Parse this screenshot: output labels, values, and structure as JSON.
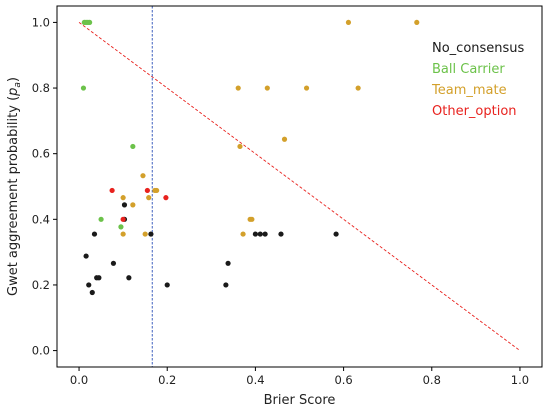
{
  "chart_data": {
    "type": "scatter",
    "xlabel": "Brier Score",
    "ylabel": "Gwet aggreement probability (",
    "ylabel_symbol": "p",
    "ylabel_subscript": "a",
    "ylabel_close": ")",
    "xlim": [
      -0.05,
      1.05
    ],
    "ylim": [
      -0.05,
      1.05
    ],
    "xticks": [
      0.0,
      0.2,
      0.4,
      0.6,
      0.8,
      1.0
    ],
    "xtick_labels": [
      "0.0",
      "0.2",
      "0.4",
      "0.6",
      "0.8",
      "1.0"
    ],
    "yticks": [
      0.0,
      0.2,
      0.4,
      0.6,
      0.8,
      1.0
    ],
    "ytick_labels": [
      "0.0",
      "0.2",
      "0.4",
      "0.6",
      "0.8",
      "1.0"
    ],
    "grid": false,
    "legend": "top-right",
    "reference_lines": [
      {
        "kind": "diagonal",
        "from": [
          0,
          1
        ],
        "to": [
          1,
          0
        ],
        "color": "#e8221e",
        "style": "dashed"
      },
      {
        "kind": "vertical",
        "x": 0.166,
        "color": "#2b50b8",
        "style": "dashed"
      }
    ],
    "series": [
      {
        "name": "No_consensus",
        "color": "#1a1a1a",
        "points": [
          [
            0.016,
            0.288
          ],
          [
            0.022,
            0.2
          ],
          [
            0.03,
            0.177
          ],
          [
            0.035,
            0.355
          ],
          [
            0.04,
            0.222
          ],
          [
            0.045,
            0.222
          ],
          [
            0.078,
            0.266
          ],
          [
            0.103,
            0.444
          ],
          [
            0.103,
            0.4
          ],
          [
            0.113,
            0.222
          ],
          [
            0.2,
            0.2
          ],
          [
            0.333,
            0.2
          ],
          [
            0.338,
            0.266
          ],
          [
            0.4,
            0.355
          ],
          [
            0.411,
            0.355
          ],
          [
            0.422,
            0.355
          ],
          [
            0.458,
            0.355
          ],
          [
            0.583,
            0.355
          ],
          [
            0.163,
            0.355
          ]
        ]
      },
      {
        "name": "Ball Carrier",
        "color": "#6cc24a",
        "points": [
          [
            0.01,
            0.8
          ],
          [
            0.012,
            1.0
          ],
          [
            0.016,
            1.0
          ],
          [
            0.02,
            1.0
          ],
          [
            0.024,
            1.0
          ],
          [
            0.05,
            0.4
          ],
          [
            0.095,
            0.377
          ],
          [
            0.122,
            0.622
          ]
        ]
      },
      {
        "name": "Team_mate",
        "color": "#d3a02b",
        "points": [
          [
            0.1,
            0.466
          ],
          [
            0.1,
            0.355
          ],
          [
            0.122,
            0.444
          ],
          [
            0.145,
            0.533
          ],
          [
            0.15,
            0.355
          ],
          [
            0.158,
            0.466
          ],
          [
            0.172,
            0.488
          ],
          [
            0.176,
            0.488
          ],
          [
            0.361,
            0.8
          ],
          [
            0.365,
            0.622
          ],
          [
            0.372,
            0.355
          ],
          [
            0.388,
            0.4
          ],
          [
            0.392,
            0.4
          ],
          [
            0.427,
            0.8
          ],
          [
            0.466,
            0.644
          ],
          [
            0.516,
            0.8
          ],
          [
            0.611,
            1.0
          ],
          [
            0.633,
            0.8
          ],
          [
            0.766,
            1.0
          ]
        ]
      },
      {
        "name": "Other_option",
        "color": "#e8221e",
        "points": [
          [
            0.075,
            0.488
          ],
          [
            0.1,
            0.4
          ],
          [
            0.155,
            0.488
          ],
          [
            0.197,
            0.466
          ]
        ]
      }
    ]
  }
}
